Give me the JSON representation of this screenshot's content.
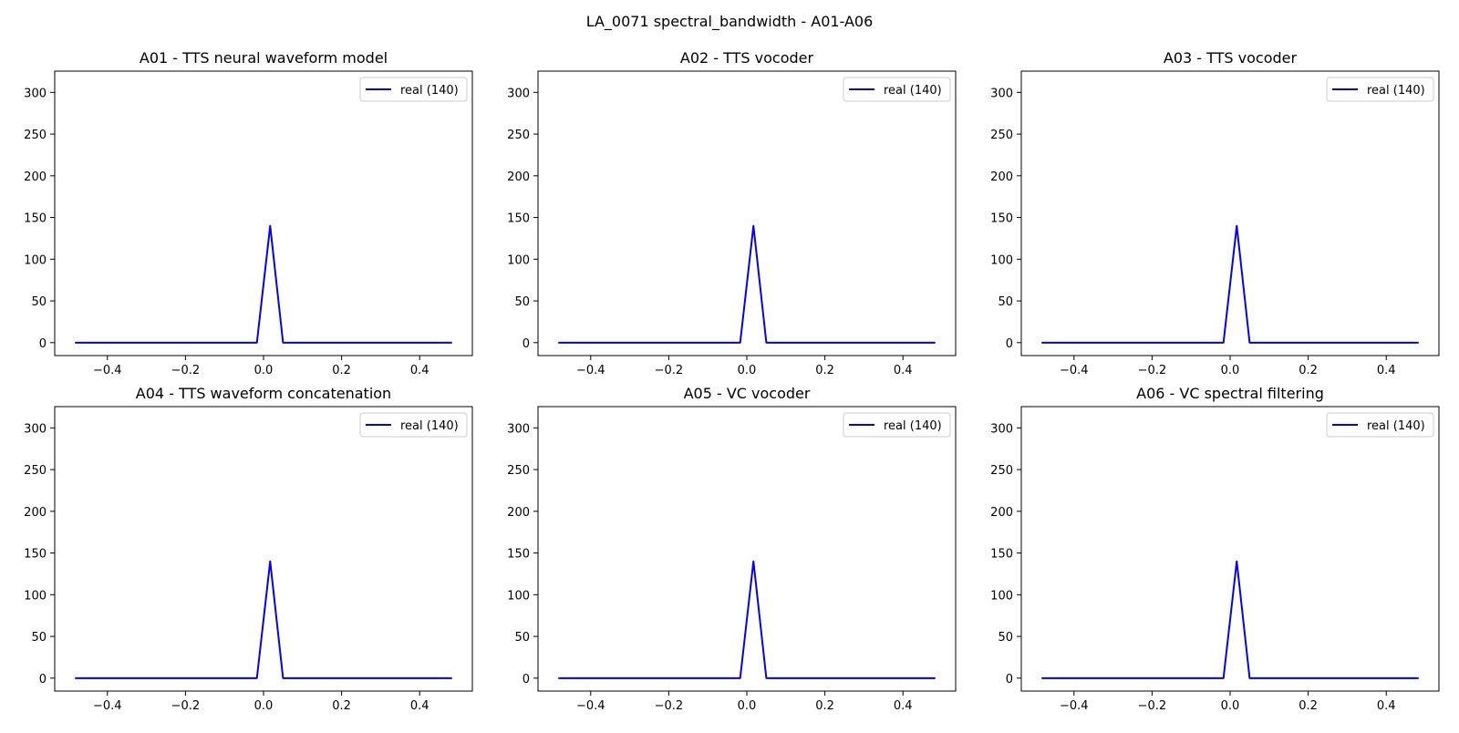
{
  "figure": {
    "title": "LA_0071 spectral_bandwidth - A01-A06"
  },
  "colors": {
    "series": "#0000ff",
    "axes": "#000000",
    "legend_border": "#cccccc",
    "background": "#ffffff"
  },
  "chart_data": [
    {
      "type": "line",
      "title": "A01 - TTS neural waveform model",
      "xlabel": "",
      "ylabel": "",
      "xlim": [
        -0.535,
        0.535
      ],
      "ylim": [
        -15.5,
        325.5
      ],
      "xticks": [
        -0.4,
        -0.2,
        0.0,
        0.2,
        0.4
      ],
      "xtick_labels": [
        "−0.4",
        "−0.2",
        "0.0",
        "0.2",
        "0.4"
      ],
      "yticks": [
        0,
        50,
        100,
        150,
        200,
        250,
        300
      ],
      "ytick_labels": [
        "0",
        "50",
        "100",
        "150",
        "200",
        "250",
        "300"
      ],
      "legend_position": "upper right",
      "series": [
        {
          "name": "real (140)",
          "x": [
            -0.483,
            -0.017,
            0.017,
            0.05,
            0.483
          ],
          "y": [
            0,
            0,
            140,
            0,
            0
          ]
        }
      ]
    },
    {
      "type": "line",
      "title": "A02 - TTS vocoder",
      "xlabel": "",
      "ylabel": "",
      "xlim": [
        -0.535,
        0.535
      ],
      "ylim": [
        -15.5,
        325.5
      ],
      "xticks": [
        -0.4,
        -0.2,
        0.0,
        0.2,
        0.4
      ],
      "xtick_labels": [
        "−0.4",
        "−0.2",
        "0.0",
        "0.2",
        "0.4"
      ],
      "yticks": [
        0,
        50,
        100,
        150,
        200,
        250,
        300
      ],
      "ytick_labels": [
        "0",
        "50",
        "100",
        "150",
        "200",
        "250",
        "300"
      ],
      "legend_position": "upper right",
      "series": [
        {
          "name": "real (140)",
          "x": [
            -0.483,
            -0.017,
            0.017,
            0.05,
            0.483
          ],
          "y": [
            0,
            0,
            140,
            0,
            0
          ]
        }
      ]
    },
    {
      "type": "line",
      "title": "A03 - TTS vocoder",
      "xlabel": "",
      "ylabel": "",
      "xlim": [
        -0.535,
        0.535
      ],
      "ylim": [
        -15.5,
        325.5
      ],
      "xticks": [
        -0.4,
        -0.2,
        0.0,
        0.2,
        0.4
      ],
      "xtick_labels": [
        "−0.4",
        "−0.2",
        "0.0",
        "0.2",
        "0.4"
      ],
      "yticks": [
        0,
        50,
        100,
        150,
        200,
        250,
        300
      ],
      "ytick_labels": [
        "0",
        "50",
        "100",
        "150",
        "200",
        "250",
        "300"
      ],
      "legend_position": "upper right",
      "series": [
        {
          "name": "real (140)",
          "x": [
            -0.483,
            -0.017,
            0.017,
            0.05,
            0.483
          ],
          "y": [
            0,
            0,
            140,
            0,
            0
          ]
        }
      ]
    },
    {
      "type": "line",
      "title": "A04 - TTS waveform concatenation",
      "xlabel": "",
      "ylabel": "",
      "xlim": [
        -0.535,
        0.535
      ],
      "ylim": [
        -15.5,
        325.5
      ],
      "xticks": [
        -0.4,
        -0.2,
        0.0,
        0.2,
        0.4
      ],
      "xtick_labels": [
        "−0.4",
        "−0.2",
        "0.0",
        "0.2",
        "0.4"
      ],
      "yticks": [
        0,
        50,
        100,
        150,
        200,
        250,
        300
      ],
      "ytick_labels": [
        "0",
        "50",
        "100",
        "150",
        "200",
        "250",
        "300"
      ],
      "legend_position": "upper right",
      "series": [
        {
          "name": "real (140)",
          "x": [
            -0.483,
            -0.017,
            0.017,
            0.05,
            0.483
          ],
          "y": [
            0,
            0,
            140,
            0,
            0
          ]
        }
      ]
    },
    {
      "type": "line",
      "title": "A05 - VC vocoder",
      "xlabel": "",
      "ylabel": "",
      "xlim": [
        -0.535,
        0.535
      ],
      "ylim": [
        -15.5,
        325.5
      ],
      "xticks": [
        -0.4,
        -0.2,
        0.0,
        0.2,
        0.4
      ],
      "xtick_labels": [
        "−0.4",
        "−0.2",
        "0.0",
        "0.2",
        "0.4"
      ],
      "yticks": [
        0,
        50,
        100,
        150,
        200,
        250,
        300
      ],
      "ytick_labels": [
        "0",
        "50",
        "100",
        "150",
        "200",
        "250",
        "300"
      ],
      "legend_position": "upper right",
      "series": [
        {
          "name": "real (140)",
          "x": [
            -0.483,
            -0.017,
            0.017,
            0.05,
            0.483
          ],
          "y": [
            0,
            0,
            140,
            0,
            0
          ]
        }
      ]
    },
    {
      "type": "line",
      "title": "A06 - VC spectral filtering",
      "xlabel": "",
      "ylabel": "",
      "xlim": [
        -0.535,
        0.535
      ],
      "ylim": [
        -15.5,
        325.5
      ],
      "xticks": [
        -0.4,
        -0.2,
        0.0,
        0.2,
        0.4
      ],
      "xtick_labels": [
        "−0.4",
        "−0.2",
        "0.0",
        "0.2",
        "0.4"
      ],
      "yticks": [
        0,
        50,
        100,
        150,
        200,
        250,
        300
      ],
      "ytick_labels": [
        "0",
        "50",
        "100",
        "150",
        "200",
        "250",
        "300"
      ],
      "legend_position": "upper right",
      "series": [
        {
          "name": "real (140)",
          "x": [
            -0.483,
            -0.017,
            0.017,
            0.05,
            0.483
          ],
          "y": [
            0,
            0,
            140,
            0,
            0
          ]
        }
      ]
    }
  ]
}
